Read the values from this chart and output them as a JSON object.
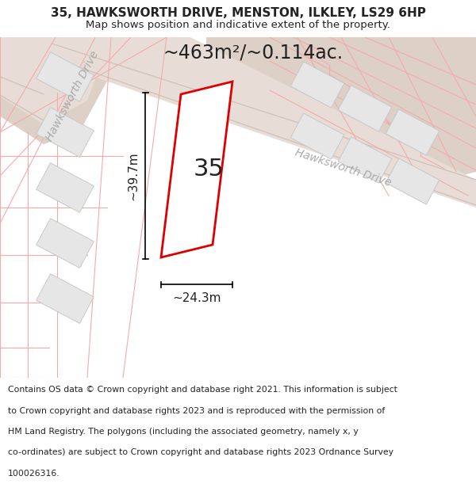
{
  "title_line1": "35, HAWKSWORTH DRIVE, MENSTON, ILKLEY, LS29 6HP",
  "title_line2": "Map shows position and indicative extent of the property.",
  "area_label": "~463m²/~0.114ac.",
  "number_label": "35",
  "dim_width": "~24.3m",
  "dim_height": "~39.7m",
  "road_label_topleft": "Hawksworth Drive",
  "road_label_main": "Hawksworth Drive",
  "map_bg": "#f5f0ed",
  "road_fill": "#e8ddd6",
  "tan_area": "#ddd0c6",
  "plot_border_color": "#dd0000",
  "building_fill": "#e6e6e6",
  "building_stroke": "#c8c8c8",
  "pink_line_color": "#f5aaaa",
  "road_line_color": "#d0c0b8",
  "text_color": "#222222",
  "road_text_color": "#aaaaaa",
  "title_fontsize": 11,
  "subtitle_fontsize": 9.5,
  "area_fontsize": 17,
  "number_fontsize": 22,
  "dim_fontsize": 11,
  "road_fontsize": 10,
  "footer_fontsize": 7.8,
  "footer_lines": [
    "Contains OS data © Crown copyright and database right 2021. This information is subject",
    "to Crown copyright and database rights 2023 and is reproduced with the permission of",
    "HM Land Registry. The polygons (including the associated geometry, namely x, y",
    "co-ordinates) are subject to Crown copyright and database rights 2023 Ordnance Survey",
    "100026316."
  ]
}
